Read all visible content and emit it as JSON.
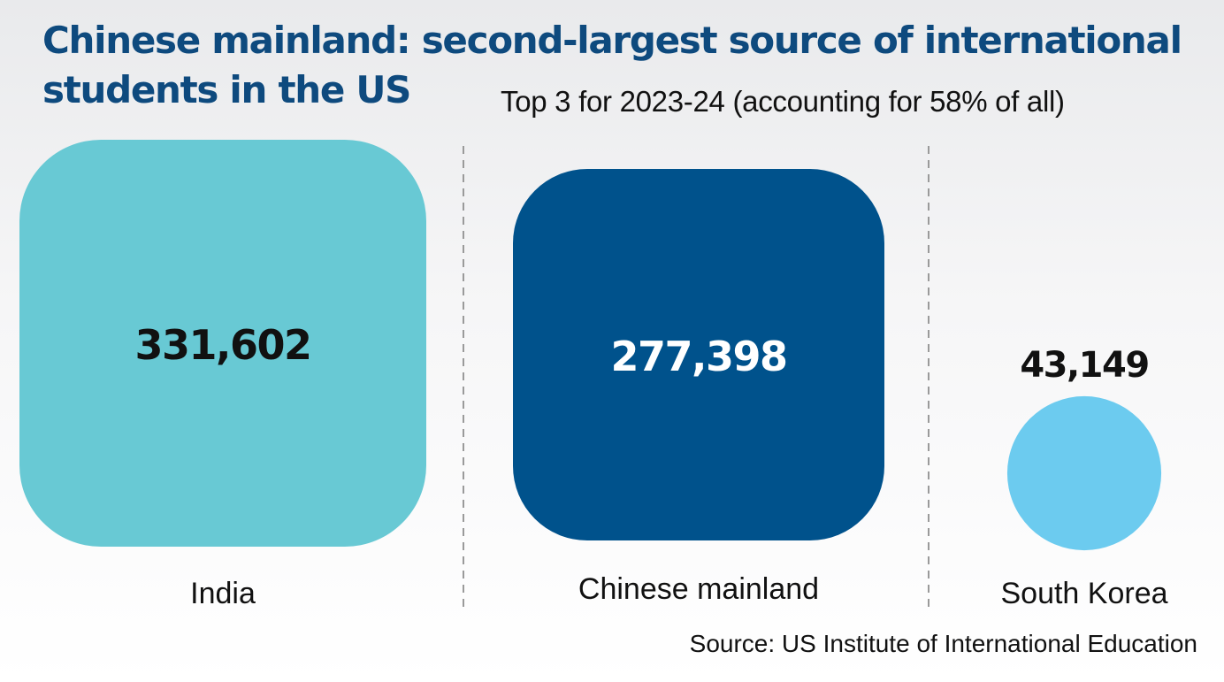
{
  "header": {
    "title_line1": "Chinese mainland: second-largest source of international",
    "title_line2": "students in the US",
    "subtitle": "Top 3 for 2023-24 (accounting for 58% of all)"
  },
  "chart_data": {
    "type": "bubble",
    "categories": [
      "India",
      "Chinese mainland",
      "South Korea"
    ],
    "values": [
      331602,
      277398,
      43149
    ],
    "value_labels": [
      "331,602",
      "277,398",
      "43,149"
    ],
    "colors": [
      "#68c9d4",
      "#00528c",
      "#6ccbef"
    ],
    "label_colors": [
      "#111111",
      "#ffffff",
      "#111111"
    ],
    "shapes": [
      "rounded-square",
      "rounded-square",
      "circle"
    ]
  },
  "footer": {
    "source": "Source: US Institute of International Education"
  }
}
